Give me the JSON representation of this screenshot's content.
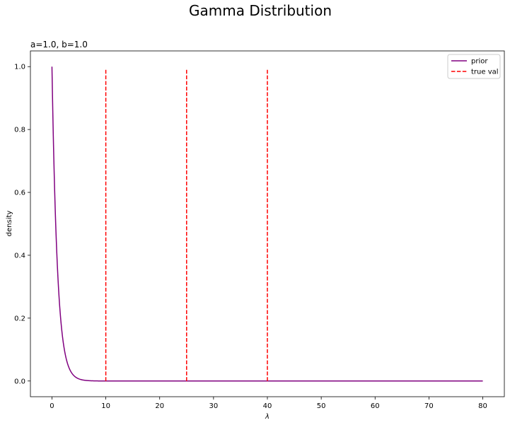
{
  "figure": {
    "suptitle": "Gamma Distribution"
  },
  "chart_data": {
    "type": "line",
    "title": "a=1.0, b=1.0",
    "xlabel": "λ",
    "ylabel": "density",
    "xlim": [
      -4,
      84
    ],
    "ylim": [
      -0.05,
      1.05
    ],
    "xticks": [
      0,
      10,
      20,
      30,
      40,
      50,
      60,
      70,
      80
    ],
    "yticks": [
      0.0,
      0.2,
      0.4,
      0.6,
      0.8,
      1.0
    ],
    "xtick_labels": [
      "0",
      "10",
      "20",
      "30",
      "40",
      "50",
      "60",
      "70",
      "80"
    ],
    "ytick_labels": [
      "0.0",
      "0.2",
      "0.4",
      "0.6",
      "0.8",
      "1.0"
    ],
    "grid": false,
    "legend_position": "top-right",
    "series": [
      {
        "name": "prior",
        "color": "#800080",
        "style": "solid",
        "distribution": "gamma",
        "a": 1.0,
        "b": 1.0,
        "x": [
          0,
          0.5,
          1,
          1.5,
          2,
          2.5,
          3,
          3.5,
          4,
          5,
          6,
          7,
          8,
          10,
          15,
          20,
          30,
          40,
          50,
          60,
          70,
          80
        ],
        "y": [
          1.0,
          0.6065,
          0.3679,
          0.2231,
          0.1353,
          0.0821,
          0.0498,
          0.0302,
          0.0183,
          0.0067,
          0.0025,
          0.0009,
          0.0003,
          0.0,
          0.0,
          0.0,
          0.0,
          0.0,
          0.0,
          0.0,
          0.0,
          0.0
        ]
      }
    ],
    "vlines": {
      "name": "true val",
      "color": "#ff0000",
      "style": "dashed",
      "x": [
        10,
        25,
        40
      ],
      "ymin": 0.0,
      "ymax": 0.995
    }
  }
}
